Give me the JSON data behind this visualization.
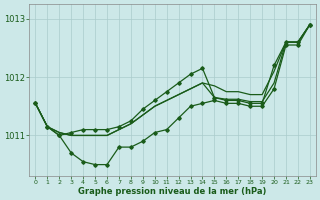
{
  "x": [
    0,
    1,
    2,
    3,
    4,
    5,
    6,
    7,
    8,
    9,
    10,
    11,
    12,
    13,
    14,
    15,
    16,
    17,
    18,
    19,
    20,
    21,
    22,
    23
  ],
  "line_zigzag": [
    1011.55,
    1011.15,
    1011.0,
    1010.7,
    1010.55,
    1010.5,
    1010.5,
    1010.8,
    1010.8,
    1010.9,
    1011.05,
    1011.1,
    1011.3,
    1011.5,
    1011.55,
    1011.6,
    1011.55,
    1011.55,
    1011.5,
    1011.5,
    1011.8,
    1012.55,
    1012.55,
    1012.9
  ],
  "line_upper": [
    1011.55,
    1011.15,
    1011.0,
    1011.05,
    1011.1,
    1011.1,
    1011.1,
    1011.15,
    1011.25,
    1011.45,
    1011.6,
    1011.75,
    1011.9,
    1012.05,
    1012.15,
    1011.65,
    1011.6,
    1011.6,
    1011.55,
    1011.55,
    1012.2,
    1012.6,
    1012.6,
    1012.9
  ],
  "line_trend1": [
    1011.55,
    1011.15,
    1011.05,
    1011.0,
    1011.0,
    1011.0,
    1011.0,
    1011.1,
    1011.2,
    1011.35,
    1011.5,
    1011.6,
    1011.7,
    1011.8,
    1011.9,
    1011.85,
    1011.75,
    1011.75,
    1011.7,
    1011.7,
    1012.1,
    1012.6,
    1012.6,
    1012.9
  ],
  "line_trend2": [
    1011.55,
    1011.15,
    1011.05,
    1011.0,
    1011.0,
    1011.0,
    1011.0,
    1011.1,
    1011.2,
    1011.35,
    1011.5,
    1011.6,
    1011.7,
    1011.8,
    1011.9,
    1011.65,
    1011.62,
    1011.62,
    1011.58,
    1011.58,
    1011.9,
    1012.6,
    1012.6,
    1012.9
  ],
  "background_color": "#cce8e8",
  "grid_color": "#aacccc",
  "line_color": "#1a5c1a",
  "xlabel": "Graphe pression niveau de la mer (hPa)",
  "ytick_labels": [
    "1011",
    "1012",
    "1013"
  ],
  "yticks": [
    1011,
    1012,
    1013
  ],
  "ylim": [
    1010.3,
    1013.25
  ],
  "xlim": [
    -0.5,
    23.5
  ],
  "xtick_labels": [
    "0",
    "1",
    "2",
    "3",
    "4",
    "5",
    "6",
    "7",
    "8",
    "9",
    "10",
    "11",
    "12",
    "13",
    "14",
    "15",
    "16",
    "17",
    "18",
    "19",
    "20",
    "21",
    "22",
    "23"
  ]
}
